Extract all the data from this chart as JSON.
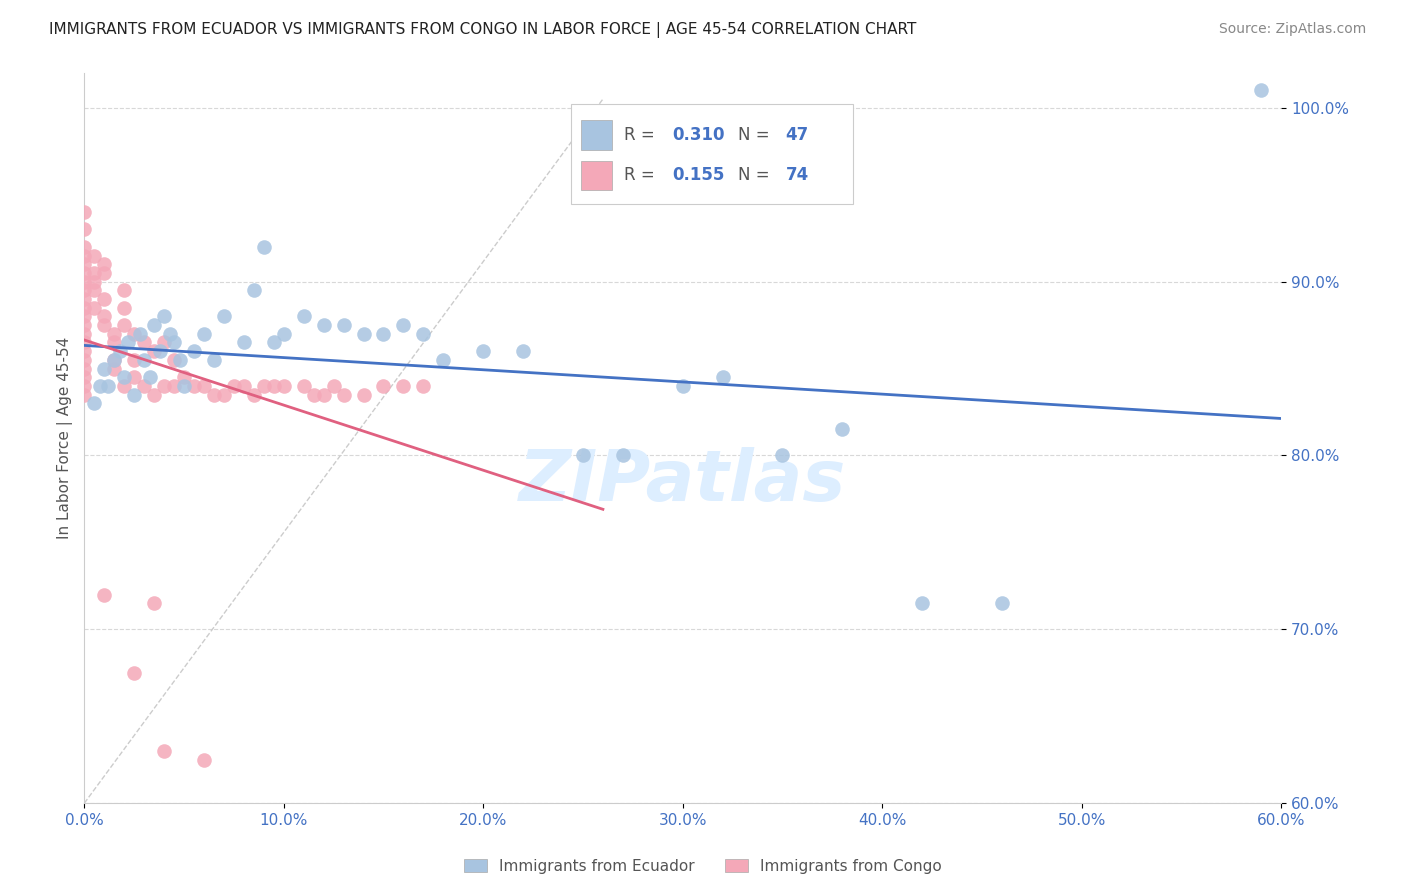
{
  "title": "IMMIGRANTS FROM ECUADOR VS IMMIGRANTS FROM CONGO IN LABOR FORCE | AGE 45-54 CORRELATION CHART",
  "source": "Source: ZipAtlas.com",
  "ylabel": "In Labor Force | Age 45-54",
  "watermark": "ZIPatlas",
  "legend_ecuador": "Immigrants from Ecuador",
  "legend_congo": "Immigrants from Congo",
  "R_ecuador": 0.31,
  "N_ecuador": 47,
  "R_congo": 0.155,
  "N_congo": 74,
  "xlim": [
    0.0,
    0.6
  ],
  "ylim": [
    0.6,
    1.02
  ],
  "yticks": [
    0.6,
    0.7,
    0.8,
    0.9,
    1.0
  ],
  "xticks": [
    0.0,
    0.1,
    0.2,
    0.3,
    0.4,
    0.5,
    0.6
  ],
  "color_ecuador": "#a8c4e0",
  "color_congo": "#f4a8b8",
  "color_ecuador_line": "#4472c4",
  "color_congo_line": "#e06080",
  "ecuador_x": [
    0.005,
    0.008,
    0.01,
    0.012,
    0.015,
    0.018,
    0.02,
    0.022,
    0.025,
    0.028,
    0.03,
    0.033,
    0.035,
    0.038,
    0.04,
    0.043,
    0.045,
    0.048,
    0.05,
    0.055,
    0.06,
    0.065,
    0.07,
    0.08,
    0.085,
    0.09,
    0.095,
    0.1,
    0.11,
    0.12,
    0.13,
    0.14,
    0.15,
    0.16,
    0.17,
    0.18,
    0.2,
    0.22,
    0.25,
    0.27,
    0.3,
    0.32,
    0.35,
    0.38,
    0.42,
    0.46,
    0.59
  ],
  "ecuador_y": [
    0.83,
    0.84,
    0.85,
    0.84,
    0.855,
    0.86,
    0.845,
    0.865,
    0.835,
    0.87,
    0.855,
    0.845,
    0.875,
    0.86,
    0.88,
    0.87,
    0.865,
    0.855,
    0.84,
    0.86,
    0.87,
    0.855,
    0.88,
    0.865,
    0.895,
    0.92,
    0.865,
    0.87,
    0.88,
    0.875,
    0.875,
    0.87,
    0.87,
    0.875,
    0.87,
    0.855,
    0.86,
    0.86,
    0.8,
    0.8,
    0.84,
    0.845,
    0.8,
    0.815,
    0.715,
    0.715,
    1.01
  ],
  "congo_x": [
    0.0,
    0.0,
    0.0,
    0.0,
    0.0,
    0.0,
    0.0,
    0.0,
    0.0,
    0.0,
    0.0,
    0.0,
    0.0,
    0.0,
    0.0,
    0.0,
    0.0,
    0.0,
    0.0,
    0.0,
    0.005,
    0.005,
    0.005,
    0.005,
    0.005,
    0.01,
    0.01,
    0.01,
    0.01,
    0.01,
    0.015,
    0.015,
    0.015,
    0.015,
    0.02,
    0.02,
    0.02,
    0.02,
    0.025,
    0.025,
    0.025,
    0.03,
    0.03,
    0.035,
    0.035,
    0.04,
    0.04,
    0.045,
    0.045,
    0.05,
    0.055,
    0.06,
    0.065,
    0.07,
    0.075,
    0.08,
    0.085,
    0.09,
    0.095,
    0.1,
    0.11,
    0.115,
    0.12,
    0.125,
    0.13,
    0.14,
    0.15,
    0.16,
    0.17,
    0.01,
    0.025,
    0.035,
    0.04,
    0.06
  ],
  "congo_y": [
    0.94,
    0.93,
    0.92,
    0.915,
    0.91,
    0.905,
    0.9,
    0.895,
    0.89,
    0.885,
    0.88,
    0.875,
    0.87,
    0.865,
    0.86,
    0.855,
    0.85,
    0.845,
    0.84,
    0.835,
    0.915,
    0.905,
    0.9,
    0.895,
    0.885,
    0.91,
    0.905,
    0.89,
    0.88,
    0.875,
    0.87,
    0.865,
    0.855,
    0.85,
    0.895,
    0.885,
    0.875,
    0.84,
    0.87,
    0.855,
    0.845,
    0.865,
    0.84,
    0.86,
    0.835,
    0.865,
    0.84,
    0.855,
    0.84,
    0.845,
    0.84,
    0.84,
    0.835,
    0.835,
    0.84,
    0.84,
    0.835,
    0.84,
    0.84,
    0.84,
    0.84,
    0.835,
    0.835,
    0.84,
    0.835,
    0.835,
    0.84,
    0.84,
    0.84,
    0.72,
    0.675,
    0.715,
    0.63,
    0.625
  ],
  "background_color": "#ffffff",
  "title_color": "#222222",
  "axis_label_color": "#555555",
  "tick_label_color": "#4472c4",
  "grid_color": "#d8d8d8",
  "title_fontsize": 11,
  "axis_label_fontsize": 11,
  "tick_fontsize": 11,
  "legend_fontsize": 12,
  "watermark_fontsize": 52,
  "watermark_color": "#ddeeff",
  "source_fontsize": 10
}
